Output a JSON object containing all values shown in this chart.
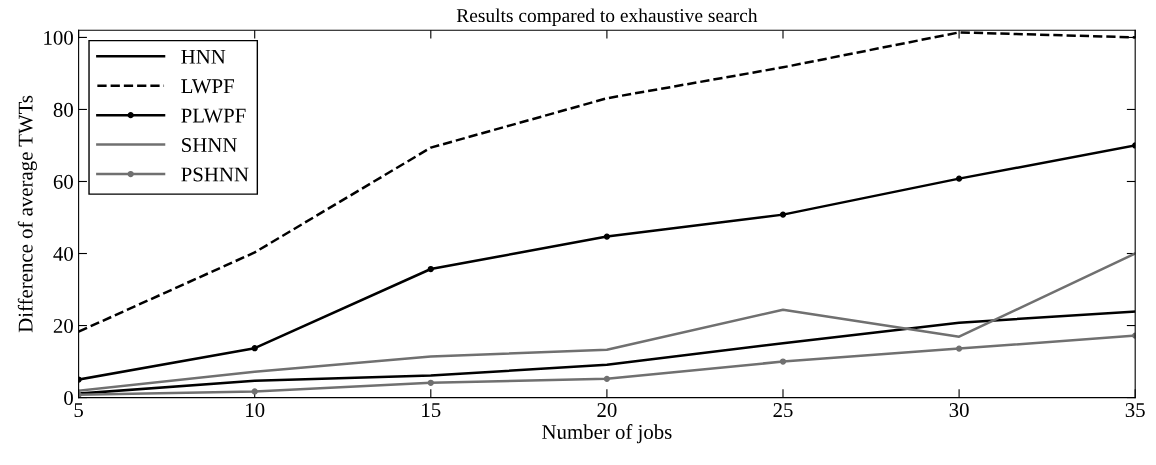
{
  "chart_data": {
    "type": "line",
    "title": "Results compared to exhaustive search",
    "xlabel": "Number of jobs",
    "ylabel": "Difference of average TWTs",
    "x": [
      5,
      10,
      15,
      20,
      25,
      30,
      35
    ],
    "xlim": [
      5,
      35
    ],
    "xticks": [
      5,
      10,
      15,
      20,
      25,
      30,
      35
    ],
    "ylim": [
      0,
      102
    ],
    "yticks": [
      0,
      20,
      40,
      60,
      80,
      100
    ],
    "grid": false,
    "legend": "top left",
    "series": [
      {
        "name": "HNN",
        "color": "#000000",
        "line_style": "solid",
        "marker": "none",
        "values": [
          1.1,
          4.7,
          6.1,
          9.1,
          15.1,
          20.8,
          23.9
        ]
      },
      {
        "name": "LWPF",
        "color": "#000000",
        "line_style": "dashed",
        "marker": "none",
        "values": [
          18.3,
          40.3,
          69.4,
          83.1,
          91.7,
          101.4,
          100
        ]
      },
      {
        "name": "PLWPF",
        "color": "#000000",
        "line_style": "solid",
        "marker": "circle",
        "values": [
          5,
          13.7,
          35.7,
          44.7,
          50.8,
          60.8,
          70
        ]
      },
      {
        "name": "SHNN",
        "color": "#707070",
        "line_style": "solid",
        "marker": "none",
        "values": [
          1.9,
          7.2,
          11.4,
          13.3,
          24.4,
          16.9,
          40
        ]
      },
      {
        "name": "PSHNN",
        "color": "#707070",
        "line_style": "solid",
        "marker": "circle",
        "values": [
          0.8,
          1.7,
          4.1,
          5.2,
          10,
          13.6,
          17.2
        ]
      }
    ]
  }
}
